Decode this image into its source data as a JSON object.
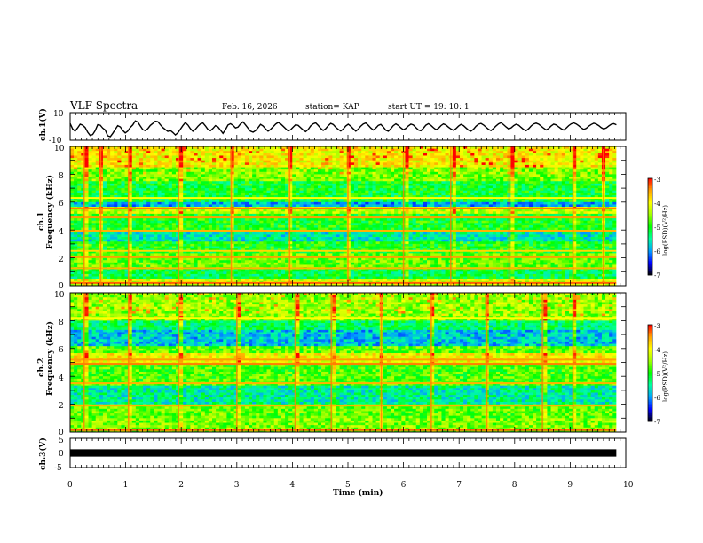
{
  "header": {
    "title": "VLF Spectra",
    "date": "Feb. 16, 2026",
    "station": "station= KAP",
    "start_time": "start  UT =   19: 10: 1"
  },
  "colorbar": {
    "label": "log(PSD)(V²/Hz)",
    "ticks": [
      "-3",
      "-4",
      "-5",
      "-6",
      "-7"
    ],
    "range": [
      -7,
      -3
    ],
    "colors": [
      "#000000",
      "#0000ff",
      "#00a0ff",
      "#00ffa0",
      "#00ff00",
      "#a0ff00",
      "#ffff00",
      "#ffa000",
      "#ff0000",
      "#ffffff"
    ]
  },
  "chart_data": [
    {
      "type": "line",
      "name": "ch1-waveform",
      "ylabel": "ch.1(V)",
      "ylim": [
        -10,
        10
      ],
      "ytick_labels": [
        "10",
        "-10"
      ],
      "x_unit": "min",
      "xlim": [
        0,
        9.83
      ],
      "y": [
        2.1,
        -1.8,
        -3.4,
        -1.0,
        1.6,
        0.9,
        -0.8,
        -4.2,
        -6.6,
        -5.9,
        -3.1,
        1.3,
        0.9,
        -1.2,
        -2.6,
        -6.8,
        -7.4,
        -5.0,
        -2.2,
        0.6,
        -0.3,
        -2.9,
        -4.7,
        -3.4,
        -0.8,
        1.1,
        4.0,
        3.2,
        0.4,
        -2.3,
        -3.0,
        -1.6,
        0.7,
        2.2,
        3.8,
        3.5,
        1.2,
        -0.8,
        -2.3,
        -3.6,
        -2.9,
        -4.4,
        -6.2,
        -4.6,
        -2.0,
        0.6,
        2.8,
        1.0,
        -1.6,
        -3.5,
        -2.1,
        0.1,
        1.9,
        2.5,
        0.4,
        -2.2,
        -3.1,
        -1.5,
        0.6,
        -0.4,
        -2.7,
        -5.0,
        -2.3,
        1.0,
        2.0,
        0.8,
        -1.1,
        -0.5,
        1.8,
        3.3,
        1.1,
        -1.2,
        -3.4,
        -4.2,
        -3.0,
        -0.9,
        1.5,
        0.3,
        -1.8,
        -3.4,
        -2.1,
        -0.3,
        1.7,
        2.9,
        1.9,
        0.2,
        -1.6,
        -3.3,
        -2.4,
        -0.6,
        1.2,
        0.8,
        -0.9,
        -2.5,
        -3.8,
        -2.2,
        0.4,
        1.9,
        2.6,
        0.7,
        -1.4,
        -2.9,
        -1.7,
        0.5,
        2.2,
        1.4,
        -0.6,
        -2.1,
        -3.3,
        -1.9,
        0.3,
        1.6,
        0.2,
        -1.7,
        -3.4,
        -2.0,
        0.2,
        1.8,
        2.5,
        0.9,
        -1.1,
        -2.6,
        -1.2,
        0.8,
        1.5,
        -0.4,
        -2.8,
        -3.5,
        -1.6,
        0.6,
        1.9,
        0.7,
        -1.0,
        -2.4,
        -1.5,
        0.4,
        1.7,
        1.0,
        -0.8,
        -2.6,
        -3.1,
        -1.3,
        0.9,
        2.0,
        0.8,
        -0.9,
        -2.3,
        -1.4,
        0.6,
        1.8,
        1.1,
        -0.5,
        -1.9,
        -2.8,
        -1.6,
        0.2,
        1.5,
        0.6,
        -1.1,
        -2.7,
        -3.4,
        -2.0,
        0.1,
        1.6,
        2.2,
        1.0,
        -0.6,
        -2.1,
        -3.0,
        -1.5,
        0.4,
        1.9,
        2.7,
        1.3,
        -0.4,
        -1.8,
        -1.1,
        0.5,
        1.6,
        0.9,
        -0.7,
        -2.2,
        -3.1,
        -1.7,
        0.3,
        1.8,
        2.4,
        1.6,
        0.2,
        -1.3,
        -2.5,
        -1.5,
        0.4,
        1.7,
        1.1,
        -0.3,
        -1.7,
        -2.6,
        -1.2,
        0.6,
        1.9,
        2.6,
        1.8,
        0.5,
        -1.0,
        -2.2,
        -1.4,
        0.2,
        1.4,
        2.3,
        1.7,
        0.6,
        -0.9,
        -1.9,
        -1.1,
        0.4,
        1.6,
        2.0,
        1.2
      ]
    },
    {
      "type": "heatmap",
      "name": "ch1-spectrogram",
      "ylabel": "ch.1\nFrequency (kHz)",
      "ylabel_channel": "ch.1",
      "ylabel_text": "Frequency (kHz)",
      "ylim": [
        0,
        10
      ],
      "ytick_labels": [
        "0",
        "2",
        "4",
        "6",
        "8",
        "10"
      ],
      "x_unit": "min",
      "xlim": [
        0,
        9.83
      ],
      "color_range": [
        -7,
        -3
      ],
      "bands": [
        {
          "f_min": 8.5,
          "f_max": 10.0,
          "level": -4.0
        },
        {
          "f_min": 7.5,
          "f_max": 8.5,
          "level": -4.6
        },
        {
          "f_min": 6.0,
          "f_max": 7.5,
          "level": -5.1
        },
        {
          "f_min": 5.6,
          "f_max": 6.0,
          "level": -5.9
        },
        {
          "f_min": 5.2,
          "f_max": 5.6,
          "level": -4.3
        },
        {
          "f_min": 4.0,
          "f_max": 5.2,
          "level": -5.0
        },
        {
          "f_min": 3.2,
          "f_max": 4.0,
          "level": -5.6
        },
        {
          "f_min": 2.3,
          "f_max": 3.2,
          "level": -5.0
        },
        {
          "f_min": 1.2,
          "f_max": 2.3,
          "level": -4.7
        },
        {
          "f_min": 0.5,
          "f_max": 1.2,
          "level": -5.2
        },
        {
          "f_min": 0.0,
          "f_max": 0.5,
          "level": -4.2
        }
      ],
      "lines": [
        {
          "f": 0.2,
          "level": -3.3
        },
        {
          "f": 1.25,
          "level": -3.6
        },
        {
          "f": 2.05,
          "level": -3.5
        },
        {
          "f": 2.5,
          "level": -3.8
        },
        {
          "f": 3.95,
          "level": -3.6
        },
        {
          "f": 4.9,
          "level": -3.5
        },
        {
          "f": 5.55,
          "level": -3.4
        },
        {
          "f": 6.3,
          "level": -4.0
        }
      ],
      "bursts_min": [
        0.25,
        0.55,
        1.05,
        1.95,
        2.9,
        3.95,
        5.0,
        6.0,
        6.85,
        7.9,
        9.05,
        9.6
      ]
    },
    {
      "type": "heatmap",
      "name": "ch2-spectrogram",
      "ylabel": "ch.2\nFrequency (kHz)",
      "ylabel_channel": "ch.2",
      "ylabel_text": "Frequency (kHz)",
      "ylim": [
        0,
        10
      ],
      "ytick_labels": [
        "0",
        "2",
        "4",
        "6",
        "8",
        "10"
      ],
      "x_unit": "min",
      "xlim": [
        0,
        9.83
      ],
      "color_range": [
        -7,
        -3
      ],
      "bands": [
        {
          "f_min": 8.0,
          "f_max": 10.0,
          "level": -4.5
        },
        {
          "f_min": 7.3,
          "f_max": 8.0,
          "level": -5.3
        },
        {
          "f_min": 6.2,
          "f_max": 7.3,
          "level": -5.8
        },
        {
          "f_min": 5.6,
          "f_max": 6.2,
          "level": -4.7
        },
        {
          "f_min": 4.9,
          "f_max": 5.6,
          "level": -4.0
        },
        {
          "f_min": 3.4,
          "f_max": 4.9,
          "level": -4.8
        },
        {
          "f_min": 2.0,
          "f_max": 3.4,
          "level": -5.5
        },
        {
          "f_min": 1.0,
          "f_max": 2.0,
          "level": -4.7
        },
        {
          "f_min": 0.0,
          "f_max": 1.0,
          "level": -4.6
        }
      ],
      "lines": [
        {
          "f": 0.15,
          "level": -3.3
        },
        {
          "f": 1.9,
          "level": -3.6
        },
        {
          "f": 3.5,
          "level": -3.6
        },
        {
          "f": 4.9,
          "level": -3.4
        },
        {
          "f": 5.2,
          "level": -3.5
        },
        {
          "f": 8.2,
          "level": -4.0
        }
      ],
      "bursts_min": [
        0.25,
        1.05,
        1.95,
        3.0,
        4.05,
        4.7,
        5.6,
        6.5,
        7.5,
        8.5,
        9.05
      ]
    },
    {
      "type": "line",
      "name": "ch3-waveform",
      "ylabel": "ch.3(V)",
      "ylim": [
        -5,
        5
      ],
      "ytick_labels": [
        "5",
        "0",
        "-5"
      ],
      "x_unit": "min",
      "xlim": [
        0,
        9.83
      ],
      "y_constant": 0,
      "band_halfwidth": 0.5
    }
  ],
  "x_axis": {
    "label": "Time (min)",
    "range": [
      0,
      10
    ],
    "tick_labels": [
      "0",
      "1",
      "2",
      "3",
      "4",
      "5",
      "6",
      "7",
      "8",
      "9",
      "10"
    ]
  }
}
